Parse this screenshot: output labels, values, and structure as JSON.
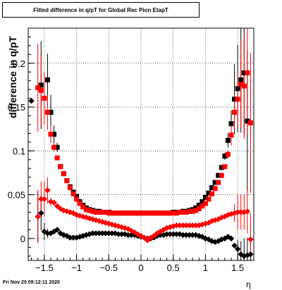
{
  "title": "Fitted difference in q/pT for Global Rec Pion EtapT",
  "timestamp": "Fri Nov 20 09:12:11 2020",
  "chart_data": {
    "type": "scatter",
    "title": "Fitted difference in q/pT for Global Rec Pion EtapT",
    "xlabel": "η",
    "ylabel": "difference in q/pT",
    "xlim": [
      -1.75,
      1.75
    ],
    "ylim": [
      -0.025,
      0.24
    ],
    "xticks": [
      -1.5,
      -1,
      -0.5,
      0,
      0.5,
      1,
      1.5
    ],
    "xtick_labels": [
      "−1.5",
      "−1",
      "−0.5",
      "0",
      "0.5",
      "1",
      "1.5"
    ],
    "yticks": [
      0,
      0.05,
      0.1,
      0.15,
      0.2
    ],
    "ytick_labels": [
      "0",
      "0.05",
      "0.1",
      "0.15",
      "0.2"
    ],
    "grid": true,
    "series": [
      {
        "marker": "square",
        "color": "#000000",
        "x": [
          -1.55,
          -1.45,
          -1.4,
          -1.35,
          -1.3,
          -1.25,
          -1.2,
          -1.15,
          -1.1,
          -1.05,
          -1.0,
          -0.95,
          -0.9,
          -0.85,
          -0.8,
          -0.75,
          -0.7,
          -0.65,
          -0.6,
          -0.55,
          -0.5,
          -0.45,
          -0.4,
          -0.35,
          -0.3,
          -0.25,
          -0.2,
          -0.15,
          -0.1,
          -0.05,
          0.0,
          0.05,
          0.1,
          0.15,
          0.2,
          0.25,
          0.3,
          0.35,
          0.4,
          0.45,
          0.5,
          0.55,
          0.6,
          0.65,
          0.7,
          0.75,
          0.8,
          0.85,
          0.9,
          0.95,
          1.0,
          1.05,
          1.1,
          1.15,
          1.2,
          1.25,
          1.3,
          1.35,
          1.4,
          1.45,
          1.5,
          1.55,
          1.6,
          1.65
        ],
        "y": [
          0.175,
          0.181,
          0.144,
          0.119,
          0.104,
          0.082,
          0.074,
          0.066,
          0.059,
          0.053,
          0.048,
          0.042,
          0.038,
          0.035,
          0.033,
          0.032,
          0.031,
          0.031,
          0.03,
          0.03,
          0.03,
          0.029,
          0.029,
          0.029,
          0.029,
          0.029,
          0.029,
          0.029,
          0.029,
          0.029,
          0.029,
          0.029,
          0.029,
          0.029,
          0.029,
          0.029,
          0.029,
          0.029,
          0.029,
          0.029,
          0.03,
          0.03,
          0.03,
          0.031,
          0.031,
          0.032,
          0.033,
          0.035,
          0.038,
          0.042,
          0.047,
          0.052,
          0.058,
          0.064,
          0.072,
          0.081,
          0.094,
          0.112,
          0.131,
          0.159,
          0.171,
          0.181,
          0.189,
          0.134
        ],
        "err": [
          0.05,
          0.03,
          0.02,
          0.01,
          0.005,
          0.003,
          0,
          0,
          0,
          0,
          0,
          0,
          0,
          0,
          0,
          0,
          0,
          0,
          0,
          0,
          0,
          0,
          0,
          0,
          0,
          0,
          0,
          0,
          0,
          0,
          0,
          0,
          0,
          0,
          0,
          0,
          0,
          0,
          0,
          0,
          0,
          0,
          0,
          0,
          0,
          0,
          0,
          0,
          0,
          0,
          0,
          0,
          0,
          0,
          0,
          0,
          0.004,
          0.008,
          0.015,
          0.04,
          0.05,
          0.06,
          0.07,
          0.08
        ]
      },
      {
        "marker": "square",
        "color": "#ff0000",
        "x": [
          -1.6,
          -1.55,
          -1.5,
          -1.45,
          -1.4,
          -1.35,
          -1.3,
          -1.25,
          -1.2,
          -1.15,
          -1.1,
          -1.05,
          -1.0,
          -0.95,
          -0.9,
          -0.85,
          -0.8,
          -0.75,
          -0.7,
          -0.65,
          -0.6,
          -0.55,
          -0.5,
          -0.45,
          -0.4,
          -0.35,
          -0.3,
          -0.25,
          -0.2,
          -0.15,
          -0.1,
          -0.05,
          0.0,
          0.05,
          0.1,
          0.15,
          0.2,
          0.25,
          0.3,
          0.35,
          0.4,
          0.45,
          0.5,
          0.55,
          0.6,
          0.65,
          0.7,
          0.75,
          0.8,
          0.85,
          0.9,
          0.95,
          1.0,
          1.05,
          1.1,
          1.15,
          1.2,
          1.25,
          1.3,
          1.35,
          1.4,
          1.45,
          1.5,
          1.55,
          1.6,
          1.65,
          1.7
        ],
        "y": [
          0.172,
          0.169,
          0.16,
          0.144,
          0.119,
          0.104,
          0.092,
          0.082,
          0.074,
          0.066,
          0.058,
          0.051,
          0.045,
          0.04,
          0.036,
          0.033,
          0.032,
          0.031,
          0.03,
          0.03,
          0.03,
          0.03,
          0.029,
          0.029,
          0.029,
          0.029,
          0.029,
          0.029,
          0.029,
          0.029,
          0.029,
          0.029,
          0.029,
          0.029,
          0.029,
          0.029,
          0.029,
          0.029,
          0.029,
          0.029,
          0.029,
          0.029,
          0.029,
          0.029,
          0.03,
          0.03,
          0.03,
          0.031,
          0.031,
          0.032,
          0.034,
          0.037,
          0.04,
          0.045,
          0.051,
          0.057,
          0.064,
          0.072,
          0.082,
          0.096,
          0.118,
          0.144,
          0.159,
          0.176,
          0.174,
          0.189,
          0.132
        ],
        "err": [
          0.05,
          0.04,
          0.03,
          0.02,
          0.01,
          0.005,
          0,
          0,
          0,
          0,
          0,
          0,
          0,
          0,
          0,
          0,
          0,
          0,
          0,
          0,
          0,
          0,
          0,
          0,
          0,
          0,
          0,
          0,
          0,
          0,
          0,
          0,
          0,
          0,
          0,
          0,
          0,
          0,
          0,
          0,
          0,
          0,
          0,
          0,
          0,
          0,
          0,
          0,
          0,
          0,
          0,
          0,
          0,
          0,
          0,
          0,
          0,
          0,
          0,
          0.005,
          0.012,
          0.02,
          0.03,
          0.05,
          0.06,
          0.07,
          0.08
        ]
      },
      {
        "marker": "diamond",
        "color": "#000000",
        "x": [
          -1.7,
          -1.6,
          -1.55,
          -1.5,
          -1.45,
          -1.4,
          -1.35,
          -1.3,
          -1.25,
          -1.2,
          -1.15,
          -1.1,
          -1.05,
          -1.0,
          -0.95,
          -0.9,
          -0.85,
          -0.8,
          -0.75,
          -0.7,
          -0.65,
          -0.6,
          -0.55,
          -0.5,
          -0.45,
          -0.4,
          -0.35,
          -0.3,
          -0.25,
          -0.2,
          -0.15,
          -0.1,
          -0.05,
          0.0,
          0.05,
          0.1,
          0.15,
          0.2,
          0.25,
          0.3,
          0.35,
          0.4,
          0.45,
          0.5,
          0.55,
          0.6,
          0.65,
          0.7,
          0.75,
          0.8,
          0.85,
          0.9,
          0.95,
          1.0,
          1.05,
          1.1,
          1.15,
          1.2,
          1.25,
          1.3,
          1.35,
          1.4,
          1.45,
          1.5,
          1.55,
          1.6,
          1.65,
          1.7
        ],
        "y": [
          0.157,
          0.025,
          0.029,
          0.008,
          0.006,
          0.006,
          0.008,
          0.01,
          0.006,
          0.004,
          0.003,
          0.001,
          0.001,
          0.001,
          0.002,
          0.003,
          0.004,
          0.005,
          0.006,
          0.006,
          0.006,
          0.006,
          0.006,
          0.006,
          0.006,
          0.006,
          0.005,
          0.005,
          0.005,
          0.004,
          0.004,
          0.004,
          0.003,
          0.002,
          0.001,
          0.0,
          0.0,
          0.001,
          0.003,
          0.004,
          0.004,
          0.005,
          0.005,
          0.005,
          0.005,
          0.005,
          0.004,
          0.004,
          0.004,
          0.004,
          0.004,
          0.003,
          0.002,
          0.0,
          -0.001,
          -0.003,
          -0.004,
          -0.003,
          -0.001,
          0.0,
          0.002,
          0.0,
          -0.008,
          -0.012,
          -0.018,
          -0.02,
          -0.019,
          -0.018
        ],
        "err": [
          0,
          0.03,
          0.02,
          0.01,
          0.005,
          0,
          0,
          0,
          0,
          0,
          0,
          0,
          0,
          0,
          0,
          0,
          0,
          0,
          0,
          0,
          0,
          0,
          0,
          0,
          0,
          0,
          0,
          0,
          0,
          0,
          0,
          0,
          0,
          0,
          0,
          0,
          0,
          0,
          0,
          0,
          0,
          0,
          0,
          0,
          0,
          0,
          0,
          0,
          0,
          0,
          0,
          0,
          0,
          0,
          0,
          0,
          0,
          0,
          0,
          0,
          0,
          0,
          0,
          0.01,
          0.015,
          0.02,
          0.02,
          0.02
        ]
      },
      {
        "marker": "diamond",
        "color": "#ff0000",
        "x": [
          -1.6,
          -1.55,
          -1.5,
          -1.45,
          -1.4,
          -1.35,
          -1.3,
          -1.25,
          -1.2,
          -1.15,
          -1.1,
          -1.05,
          -1.0,
          -0.95,
          -0.9,
          -0.85,
          -0.8,
          -0.75,
          -0.7,
          -0.65,
          -0.6,
          -0.55,
          -0.5,
          -0.45,
          -0.4,
          -0.35,
          -0.3,
          -0.25,
          -0.2,
          -0.15,
          -0.1,
          -0.05,
          0.0,
          0.05,
          0.1,
          0.15,
          0.2,
          0.25,
          0.3,
          0.35,
          0.4,
          0.45,
          0.5,
          0.55,
          0.6,
          0.65,
          0.7,
          0.75,
          0.8,
          0.85,
          0.9,
          0.95,
          1.0,
          1.05,
          1.1,
          1.15,
          1.2,
          1.25,
          1.3,
          1.35,
          1.4,
          1.45,
          1.5,
          1.55,
          1.6,
          1.65,
          1.7
        ],
        "y": [
          0.025,
          0.045,
          0.045,
          0.055,
          0.042,
          0.041,
          0.037,
          0.034,
          0.032,
          0.031,
          0.03,
          0.029,
          0.027,
          0.026,
          0.025,
          0.024,
          0.023,
          0.022,
          0.021,
          0.02,
          0.019,
          0.018,
          0.017,
          0.016,
          0.015,
          0.014,
          0.013,
          0.012,
          0.011,
          0.009,
          0.007,
          0.005,
          0.003,
          0.001,
          -0.002,
          0.001,
          0.003,
          0.006,
          0.008,
          0.01,
          0.012,
          0.013,
          0.014,
          0.015,
          0.015,
          0.015,
          0.015,
          0.015,
          0.015,
          0.015,
          0.015,
          0.016,
          0.017,
          0.018,
          0.02,
          0.021,
          0.022,
          0.024,
          0.025,
          0.027,
          0.028,
          0.029,
          0.03,
          0.03,
          0.03,
          0.031,
          -0.001
        ],
        "err": [
          0.03,
          0.02,
          0.02,
          0.015,
          0.005,
          0,
          0,
          0,
          0,
          0,
          0,
          0,
          0,
          0,
          0,
          0,
          0,
          0,
          0,
          0,
          0,
          0,
          0,
          0,
          0,
          0,
          0,
          0,
          0,
          0,
          0,
          0,
          0,
          0,
          0,
          0,
          0,
          0,
          0,
          0,
          0,
          0,
          0,
          0,
          0,
          0,
          0,
          0,
          0,
          0,
          0,
          0,
          0,
          0,
          0,
          0,
          0,
          0,
          0,
          0,
          0,
          0.01,
          0.02,
          0.02,
          0.02,
          0.025,
          0.03
        ]
      }
    ]
  }
}
